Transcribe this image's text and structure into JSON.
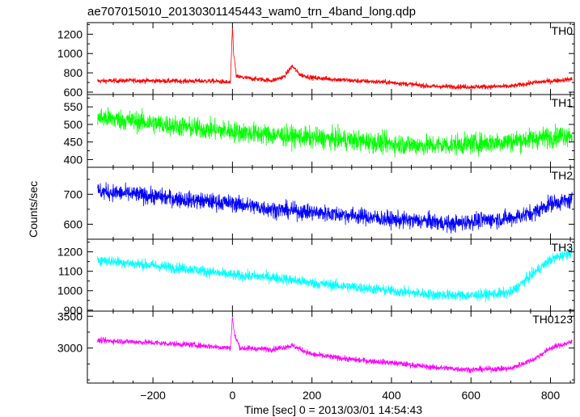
{
  "title": "ae707015010_20130301145443_wam0_trn_4band_long.qdp",
  "ylabel": "Counts/sec",
  "xlabel": "Time [sec] 0 = 2013/03/01 14:54:43",
  "chart_data": {
    "type": "line",
    "title": "ae707015010_20130301145443_wam0_trn_4band_long.qdp",
    "xlabel": "Time [sec] 0 = 2013/03/01 14:54:43",
    "ylabel": "Counts/sec",
    "xlim": [
      -365,
      860
    ],
    "xticks": [
      -200,
      0,
      200,
      400,
      600,
      800
    ],
    "xtick_labels": [
      "−200",
      "0",
      "200",
      "400",
      "600",
      "800"
    ],
    "panels": [
      {
        "name": "TH0",
        "color": "#ff0000",
        "ylim": [
          575,
          1320
        ],
        "yticks": [
          600,
          800,
          1000,
          1200
        ],
        "x": [
          -340,
          -250,
          -150,
          -50,
          -5,
          0,
          3,
          10,
          50,
          100,
          130,
          150,
          170,
          200,
          300,
          400,
          500,
          600,
          700,
          760,
          800,
          855
        ],
        "y": [
          715,
          720,
          715,
          715,
          700,
          1290,
          1000,
          760,
          740,
          720,
          760,
          870,
          780,
          750,
          720,
          700,
          660,
          655,
          660,
          700,
          715,
          735
        ],
        "noise": 25
      },
      {
        "name": "TH1",
        "color": "#00ff00",
        "ylim": [
          378,
          585
        ],
        "yticks": [
          400,
          450,
          500,
          550
        ],
        "x": [
          -340,
          -250,
          -100,
          0,
          100,
          200,
          300,
          400,
          500,
          600,
          700,
          800,
          855
        ],
        "y": [
          520,
          510,
          490,
          480,
          470,
          462,
          455,
          445,
          440,
          445,
          452,
          465,
          472
        ],
        "noise": 30
      },
      {
        "name": "TH2",
        "color": "#0000ff",
        "ylim": [
          550,
          790
        ],
        "yticks": [
          600,
          700
        ],
        "x": [
          -340,
          -250,
          -100,
          0,
          100,
          200,
          300,
          400,
          500,
          550,
          600,
          700,
          760,
          800,
          855
        ],
        "y": [
          710,
          700,
          680,
          670,
          650,
          640,
          630,
          615,
          610,
          600,
          610,
          620,
          640,
          670,
          680
        ],
        "noise": 28
      },
      {
        "name": "TH3",
        "color": "#00ffff",
        "ylim": [
          895,
          1265
        ],
        "yticks": [
          900,
          1000,
          1100,
          1200
        ],
        "x": [
          -340,
          -250,
          -100,
          0,
          100,
          200,
          300,
          400,
          500,
          600,
          700,
          740,
          800,
          855
        ],
        "y": [
          1160,
          1140,
          1110,
          1080,
          1070,
          1040,
          1020,
          1000,
          980,
          975,
          990,
          1060,
          1160,
          1200
        ],
        "noise": 28
      },
      {
        "name": "TH0123",
        "color": "#ff00ff",
        "ylim": [
          2450,
          3580
        ],
        "yticks": [
          3000,
          3500
        ],
        "x": [
          -340,
          -250,
          -100,
          -5,
          0,
          5,
          20,
          100,
          150,
          200,
          300,
          400,
          500,
          600,
          700,
          760,
          800,
          855
        ],
        "y": [
          3120,
          3100,
          3050,
          3000,
          3500,
          3200,
          3000,
          2980,
          3040,
          2900,
          2820,
          2770,
          2700,
          2660,
          2680,
          2830,
          3000,
          3100
        ],
        "noise": 45
      }
    ]
  }
}
